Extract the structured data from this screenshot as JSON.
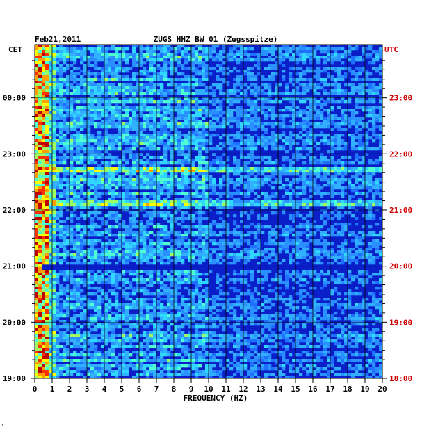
{
  "chart_data": {
    "type": "heatmap",
    "date": "Feb21,2011",
    "title": "ZUGS HHZ BW 01 (Zugsspitze)",
    "left_axis_label": "CET",
    "right_axis_label": "UTC",
    "xlabel": "FREQUENCY (HZ)",
    "x_ticks": [
      "0",
      "1",
      "2",
      "3",
      "4",
      "5",
      "6",
      "7",
      "8",
      "9",
      "10",
      "11",
      "12",
      "13",
      "14",
      "15",
      "16",
      "17",
      "18",
      "19",
      "20"
    ],
    "xlim": [
      0,
      20
    ],
    "cet_ticks": [
      "19:00",
      "20:00",
      "21:00",
      "22:00",
      "23:00",
      "00:00"
    ],
    "utc_ticks": [
      "18:00",
      "19:00",
      "20:00",
      "21:00",
      "22:00",
      "23:00"
    ],
    "time_range_utc": [
      "18:00",
      "23:57"
    ],
    "grid": true,
    "colors": {
      "background": "#0a1fc8",
      "low_freq_band": "#ffff00",
      "hot": "#ff0000",
      "utc_text": "#d00000",
      "gridline": "#000000"
    },
    "features": {
      "dominant_energy_hz": [
        0,
        0.8
      ],
      "quiet_band_utc": "20:00",
      "bright_band_utc": [
        "21:10",
        "21:45"
      ]
    }
  }
}
